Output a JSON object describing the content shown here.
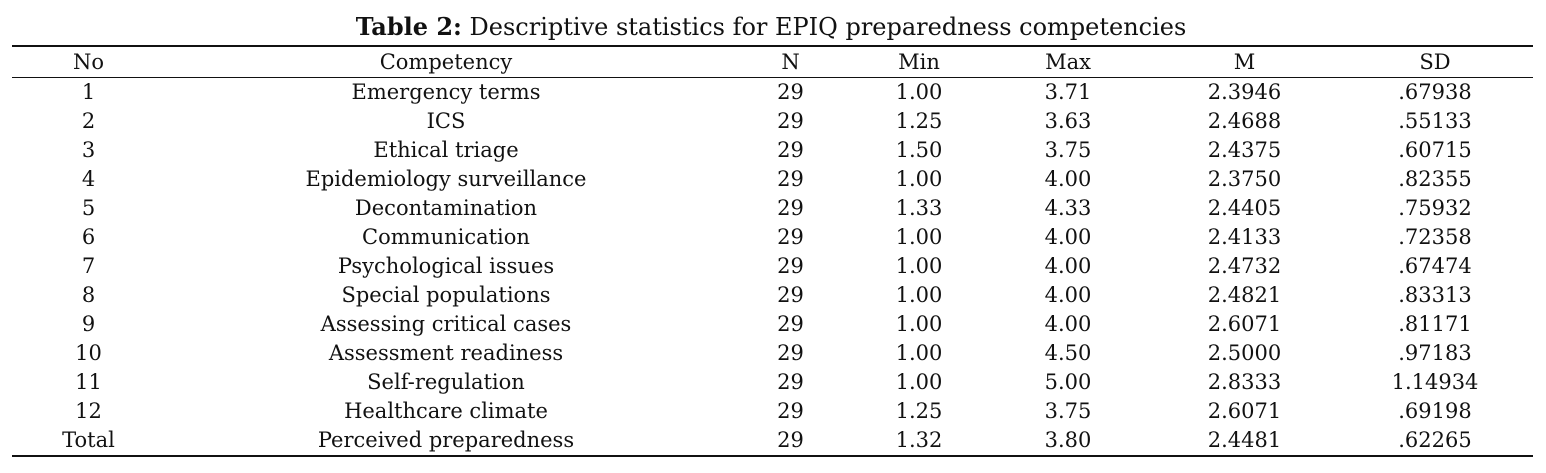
{
  "caption": {
    "label": "Table 2:",
    "text": " Descriptive statistics for EPIQ preparedness competencies"
  },
  "table": {
    "headers": [
      "No",
      "Competency",
      "N",
      "Min",
      "Max",
      "M",
      "SD"
    ],
    "rows": [
      [
        "1",
        "Emergency terms",
        "29",
        "1.00",
        "3.71",
        "2.3946",
        ".67938"
      ],
      [
        "2",
        "ICS",
        "29",
        "1.25",
        "3.63",
        "2.4688",
        ".55133"
      ],
      [
        "3",
        "Ethical triage",
        "29",
        "1.50",
        "3.75",
        "2.4375",
        ".60715"
      ],
      [
        "4",
        "Epidemiology surveillance",
        "29",
        "1.00",
        "4.00",
        "2.3750",
        ".82355"
      ],
      [
        "5",
        "Decontamination",
        "29",
        "1.33",
        "4.33",
        "2.4405",
        ".75932"
      ],
      [
        "6",
        "Communication",
        "29",
        "1.00",
        "4.00",
        "2.4133",
        ".72358"
      ],
      [
        "7",
        "Psychological issues",
        "29",
        "1.00",
        "4.00",
        "2.4732",
        ".67474"
      ],
      [
        "8",
        "Special populations",
        "29",
        "1.00",
        "4.00",
        "2.4821",
        ".83313"
      ],
      [
        "9",
        "Assessing critical cases",
        "29",
        "1.00",
        "4.00",
        "2.6071",
        ".81171"
      ],
      [
        "10",
        "Assessment readiness",
        "29",
        "1.00",
        "4.50",
        "2.5000",
        ".97183"
      ],
      [
        "11",
        "Self-regulation",
        "29",
        "1.00",
        "5.00",
        "2.8333",
        "1.14934"
      ],
      [
        "12",
        "Healthcare climate",
        "29",
        "1.25",
        "3.75",
        "2.6071",
        ".69198"
      ],
      [
        "Total",
        "Perceived preparedness",
        "29",
        "1.32",
        "3.80",
        "2.4481",
        ".62265"
      ]
    ]
  }
}
